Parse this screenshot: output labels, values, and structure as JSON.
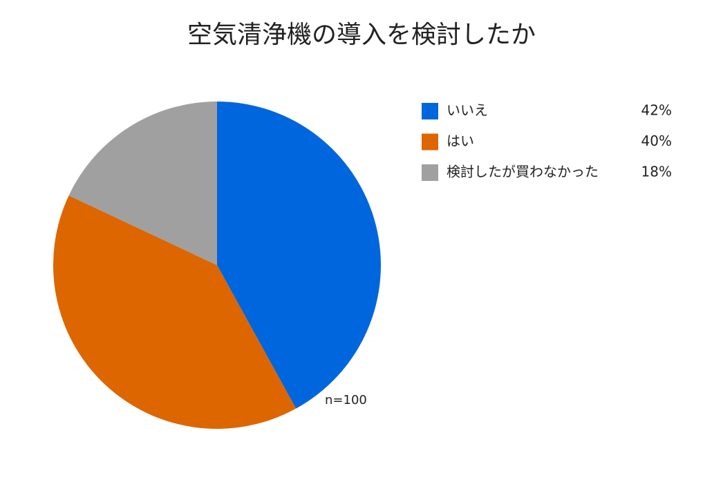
{
  "chart_data": {
    "type": "pie",
    "title": "空気清浄機の導入を検討したか",
    "categories": [
      "いいえ",
      "はい",
      "検討したが買わなかった"
    ],
    "values": [
      42,
      40,
      18
    ],
    "value_labels": [
      "42%",
      "40%",
      "18%"
    ],
    "colors": [
      "#0066dd",
      "#dd6600",
      "#a0a0a0"
    ],
    "annotation": "n=100",
    "legend": "right"
  }
}
